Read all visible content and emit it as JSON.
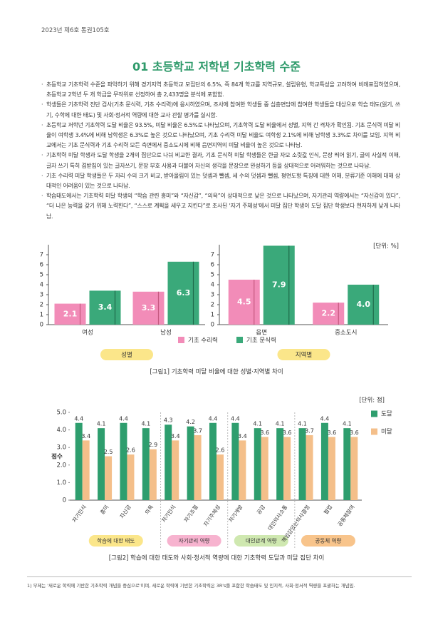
{
  "header": "2023년 제6호 통권105호",
  "title": "01 초등학교 저학년 기초학력 수준",
  "bullets": [
    "초등학교 기초학력 수준을 파악하기 위해 경기지역 초등학교 모집단의 6.5%, 즉 84개 학교를 지역규모, 설립유형, 학교특성을 고려하여 비례표집하였으며, 초등학교 2학년 두 개 학급을 무작위로 선정하여 총 2,433명을 분석에 포함함.",
    "학생들은 기초학력 진단 검사(기초 문식력, 기초 수리력)에 응시하였으며, 조사에 참여한 학생들 중 심층면담에 참여한 학생들을 대상으로 학습 태도(읽기, 쓰기, 수학에 대한 태도) 및 사회·정서적 역량에 대한 교사 관찰 평가를 실시함.",
    "초등학교 저학년 기초학력 도달 비율은 93.5%, 미달 비율은 6.5%로 나타났으며, 기초학력 도달 비율에서 성별, 지역 간 격차가 확인됨. 기초 문식력 미달 비율이 여학생 3.4%에 비해 남학생은 6.3%로 높은 것으로 나타났으며, 기초 수리력 미달 비율도 여학생 2.1%에 비해 남학생 3.3%로 차이를 보임. 지역 비교에서는 기초 문식력과 기초 수리력 모든 측면에서 중소도시에 비해 읍면지역의 미달 비율이 높은 것으로 나타남.",
    "기초학력 미달 학생과 도달 학생을 2개의 집단으로 나눠 비교한 결과, 기초 문식력 미달 학생들은 한글 자모 소릿값 인식, 문장 띄어 읽기, 글의 사실적 이해, 글자 쓰기 특히 겹받침이 있는 글자쓰기, 문장 부호 사용과 더불어 자신의 생각을 문장으로 완성하기 등을 상대적으로 어려워하는 것으로 나타남.",
    "기초 수리력 미달 학생들은 두 자리 수의 크기 비교, 받아올림이 있는 덧셈과 뺄셈, 세 수의 덧셈과 뺄셈, 평면도형 특징에 대한 이해, 분류기준 이해에 대해 상대적인 어려움이 있는 것으로 나타남.",
    "학습태도에서는 기초학력 미달 학생의 “학습 관련 흥미”와 “자신감”, “의욕”이 상대적으로 낮은 것으로 나타났으며, 자기관리 역량에서는 “자신감이 있다”, “더 나은 능력을 갖기 위해 노력한다”, “스스로 계획을 세우고 지킨다”로 조사된 '자기 주체성'에서 미달 집단 학생이 도달 집단 학생보다 현저하게 낮게 나타남."
  ],
  "chart_data": [
    {
      "type": "bar",
      "unit": "[단위: %]",
      "caption": "[그림1] 기초학력 미달 비율에 대한 성별·지역별 차이",
      "ylim": [
        0,
        8
      ],
      "yticks": [
        0,
        1,
        2,
        3,
        4,
        5,
        6,
        7
      ],
      "legend": [
        {
          "name": "기초 수리력",
          "color": "#f28cb8"
        },
        {
          "name": "기초 문식력",
          "color": "#3aa97a"
        }
      ],
      "panels": [
        {
          "label": "성별",
          "color": "#fbe68a",
          "categories": [
            "여성",
            "남성"
          ],
          "series": [
            {
              "values": [
                2.1,
                3.3
              ]
            },
            {
              "values": [
                3.4,
                6.3
              ]
            }
          ]
        },
        {
          "label": "지역별",
          "color": "#fbe68a",
          "categories": [
            "읍면",
            "중소도시"
          ],
          "series": [
            {
              "values": [
                4.5,
                2.2
              ]
            },
            {
              "values": [
                7.9,
                4.0
              ],
              "value_labels": [
                "7.9",
                "4.0"
              ]
            }
          ]
        }
      ]
    },
    {
      "type": "bar",
      "unit": "[단위: 점]",
      "ylabel": "점수",
      "caption": "[그림2] 학습에 대한 태도와 사회·정서적 역량에 대한 기초학력 도달과 미달 집단 차이",
      "ylim": [
        0,
        5
      ],
      "yticks": [
        0,
        {
          "value": 1,
          "label": "1.0"
        },
        {
          "value": 2,
          "label": "2.0"
        },
        {
          "value": 3,
          "label": "3.0"
        },
        {
          "value": 4,
          "label": "4.0"
        },
        {
          "value": 5,
          "label": "5.0"
        }
      ],
      "legend": [
        {
          "name": "도달",
          "color": "#2e9e6e"
        },
        {
          "name": "미달",
          "color": "#f4bf8a"
        }
      ],
      "panels": [
        {
          "label": "학습에 대한 태도",
          "color": "#fbe68a",
          "categories": [
            "자기인식",
            "흥미",
            "자신감",
            "의욕"
          ],
          "series": [
            {
              "values": [
                4.4,
                4.1,
                4.4,
                4.1
              ]
            },
            {
              "values": [
                3.4,
                2.5,
                2.6,
                2.9
              ]
            }
          ]
        },
        {
          "label": "자기관리 역량",
          "color": "#f7b3cf",
          "categories": [
            "자기인식",
            "자기조절",
            "자기주체성"
          ],
          "series": [
            {
              "values": [
                4.3,
                4.2,
                4.4
              ]
            },
            {
              "values": [
                3.4,
                3.7,
                2.6
              ]
            }
          ]
        },
        {
          "label": "대인관계 역량",
          "color": "#cfe8b0",
          "categories": [
            "자기개방",
            "공감",
            "대인의사소통"
          ],
          "series": [
            {
              "values": [
                4.4,
                4.1,
                4.1
              ]
            },
            {
              "values": [
                3.4,
                3.6,
                3.6
              ]
            }
          ]
        },
        {
          "label": "공동체 역량",
          "color": "#f8c48b",
          "categories": [
            "책임감있는의사결정",
            "협업",
            "공동체참여"
          ],
          "series": [
            {
              "values": [
                4.1,
                4.4,
                4.1
              ]
            },
            {
              "values": [
                3.7,
                3.6,
                3.6
              ]
            }
          ]
        }
      ]
    }
  ],
  "footnote": "1) 부제는 '새로운 학력에 기반한 기초학력 개념을 중심으로'이며, 새로운 학력에 기반한 기초학력은 3R's를 포함한 학습태도 및 인지적, 사회·정서적 역량을 포괄하는 개념임."
}
